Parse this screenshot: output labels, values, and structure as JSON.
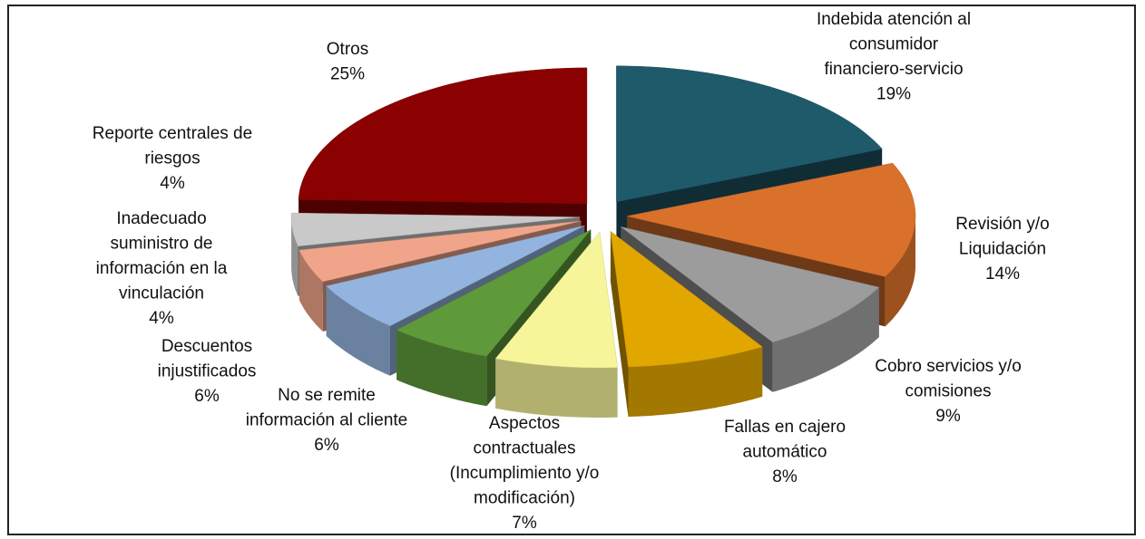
{
  "chart_data": {
    "type": "pie3d",
    "labels": [
      [
        "Indebida atención al",
        "consumidor",
        "financiero-servicio"
      ],
      [
        "Revisión y/o",
        "Liquidación"
      ],
      [
        "Cobro servicios y/o",
        "comisiones"
      ],
      [
        "Fallas en cajero",
        "automático"
      ],
      [
        "Aspectos",
        "contractuales",
        "(Incumplimiento y/o",
        "modificación)"
      ],
      [
        "No se remite",
        "información al cliente"
      ],
      [
        "Descuentos",
        "injustificados"
      ],
      [
        "Inadecuado",
        "suministro de",
        "información en la",
        "vinculación"
      ],
      [
        "Reporte centrales de",
        "riesgos"
      ],
      [
        "Otros"
      ]
    ],
    "values": [
      19,
      14,
      9,
      8,
      7,
      6,
      6,
      4,
      4,
      25
    ],
    "value_labels": [
      "19%",
      "14%",
      "9%",
      "8%",
      "7%",
      "6%",
      "6%",
      "4%",
      "4%",
      "25%"
    ],
    "colors": [
      "#1f5a6b",
      "#d9712b",
      "#9c9c9c",
      "#e2a600",
      "#f7f59a",
      "#5f9a3a",
      "#93b4de",
      "#f0a58a",
      "#c9c9c9",
      "#8b0000"
    ]
  }
}
